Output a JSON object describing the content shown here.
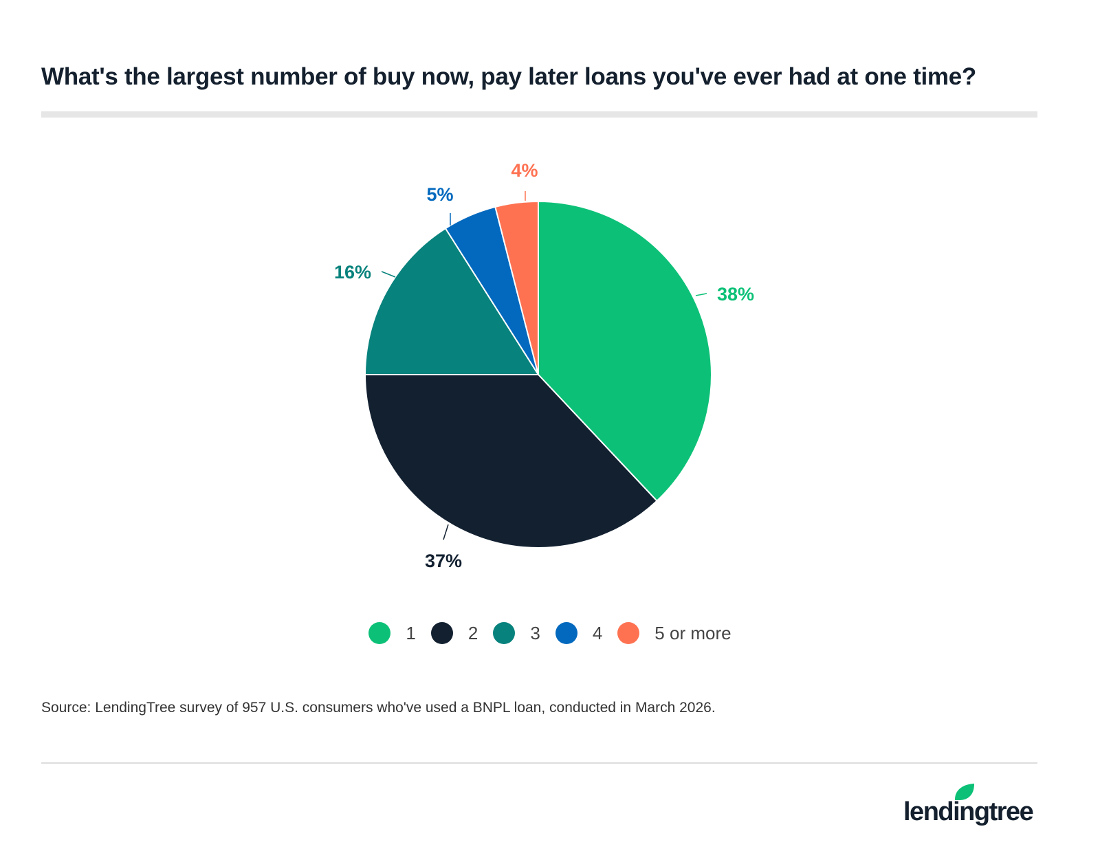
{
  "chart_data": {
    "type": "pie",
    "title": "What's the largest number of buy now, pay later loans you've ever had at one time?",
    "slices": [
      {
        "name": "1",
        "value": 38,
        "label": "38%",
        "color": "#0cc177"
      },
      {
        "name": "2",
        "value": 37,
        "label": "37%",
        "color": "#122030"
      },
      {
        "name": "3",
        "value": 16,
        "label": "16%",
        "color": "#08827c"
      },
      {
        "name": "4",
        "value": 5,
        "label": "5%",
        "color": "#0369be"
      },
      {
        "name": "5 or more",
        "value": 4,
        "label": "4%",
        "color": "#fe7252"
      }
    ],
    "legend_position": "bottom",
    "source": "Source: LendingTree survey of 957 U.S. consumers who've used a BNPL loan, conducted in March 2026."
  },
  "brand": {
    "logo_text": "lendingtree",
    "logo_color": "#14202e",
    "leaf_color": "#0cc177"
  }
}
